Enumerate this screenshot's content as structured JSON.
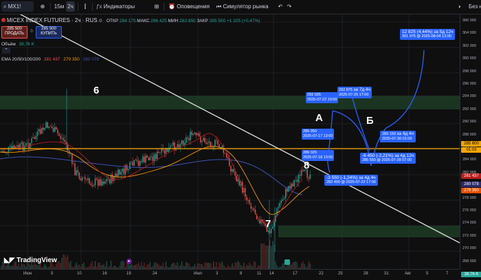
{
  "toolbar": {
    "symbol": "MX1!",
    "tf_15m": "15м",
    "tf_2h": "2ч",
    "indicators": "Индикаторы",
    "alerts": "Оповещения",
    "replay": "Симулятор рынка",
    "right_text": "Без н"
  },
  "legend": {
    "title": "MICEX INDEX FUTURES · 2ч · RUS",
    "ohlc_o_label": "ОТКР",
    "ohlc_o": "284 175",
    "ohlc_h_label": "МАКС",
    "ohlc_h": "286 425",
    "ohlc_l_label": "МИН",
    "ohlc_l": "283 850",
    "ohlc_c_label": "ЗАКР",
    "ohlc_c": "285 500",
    "change": "+1 325 (+0,47%)",
    "sell_price": "285 500",
    "sell_label": "ПРОДАТЬ",
    "spread": "0",
    "buy_price": "285 500",
    "buy_label": "КУПИТЬ",
    "volume_label": "Объём",
    "volume_value": "38,76 K",
    "ema_label": "EMA 20/50/100/200",
    "ema1": "281 437",
    "ema2": "279 350",
    "ema3": "280 078"
  },
  "price_scale": [
    "306 000",
    "304 000",
    "302 000",
    "300 000",
    "298 000",
    "296 000",
    "294 000",
    "292 000",
    "290 000",
    "288 000",
    "286 000",
    "284 000",
    "282 000",
    "280 000",
    "278 000",
    "276 000",
    "274 000",
    "272 000",
    "270 000",
    "268 000"
  ],
  "price_tags": {
    "current": "285 600",
    "timer": "01:03",
    "ema1": "281 437",
    "ema3": "280 078",
    "ema2": "279 350",
    "volume": "38,76 K"
  },
  "time_scale": [
    "Июн",
    "5",
    "10",
    "16",
    "19",
    "24",
    "Июл",
    "3",
    "8",
    "11",
    "14",
    "17",
    "22",
    "25",
    "28",
    "31",
    "Авг",
    "5",
    "7"
  ],
  "annotations": {
    "n6": "6",
    "n7": "7",
    "n8": "8",
    "lbl_a": "А",
    "lbl_b": "Б"
  },
  "measures": {
    "m1_l1": "285 950",
    "m1_l2": "2025-07-17 13:00",
    "m2_l1": "286 025",
    "m2_l2": "2025-07-18 13:00",
    "m3_l1": "292 025",
    "m3_l2": "2025-07-22 19:00",
    "m4_l1": "292 875",
    "m4_l2": "2025-07-25 17:00",
    "m4_l3": "за 7д 4ч",
    "m5_l1": "-3 550 (-1,24%) за 4д 4ч",
    "m5_l2": "282 400 @ 2025-07-22 17:00",
    "m6_l1": "-6 450 (-2,21%) за 4д 12ч",
    "m6_l2": "285 550 @ 2025-07-28 07:00",
    "m7_l1": "289 150",
    "m7_l2": "2025-07-30 01:00",
    "m7_l3": "за 4д 4ч",
    "m8_l1": "12 825 (4,44%) за 5д 12ч",
    "m8_l2": "301 975 @ 2025-08-04 13:00"
  },
  "logo": "TradingView",
  "colors": {
    "bull": "#26a69a",
    "bear": "#ef5350",
    "level": "#f7a600",
    "zone": "#1e4d2b",
    "measure": "#2962ff"
  }
}
